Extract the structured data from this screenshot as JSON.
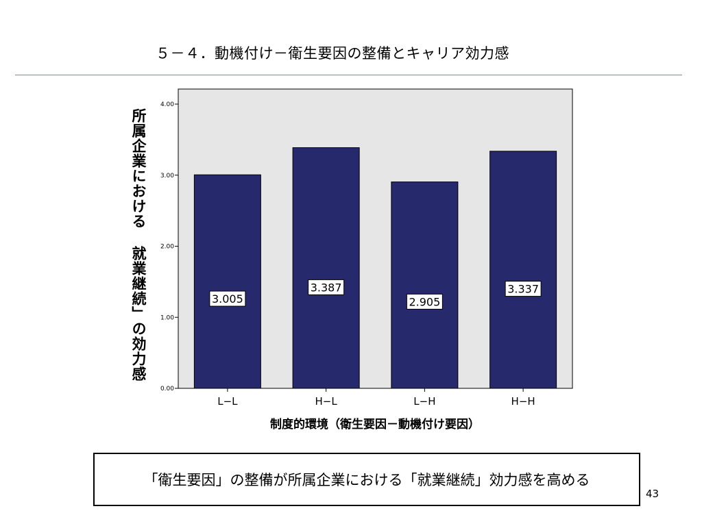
{
  "slide": {
    "title": "５－４．動機付け－衛生要因の整備とキャリア効力感",
    "conclusion": "「衛生要因」の整備が所属企業における「就業継続」効力感を高める",
    "page_number": "43"
  },
  "chart_data": {
    "type": "bar",
    "categories": [
      "L−L",
      "H−L",
      "L−H",
      "H−H"
    ],
    "values": [
      3.005,
      3.387,
      2.905,
      3.337
    ],
    "value_labels": [
      "3.005",
      "3.387",
      "2.905",
      "3.337"
    ],
    "xlabel": "制度的環境（衛生要因－動機付け要因）",
    "ylabel": "所属企業における 就業継続」の効力感",
    "ylim": [
      0,
      4
    ],
    "yticks": [
      0,
      1,
      2,
      3,
      4
    ],
    "ytick_labels": [
      "0.00",
      "1.00",
      "2.00",
      "3.00",
      "4.00"
    ],
    "grid": false,
    "legend": "none",
    "colors": {
      "bar": "#262a6d",
      "plot_background": "#e6e6e6",
      "label_box": "#ffffff"
    }
  }
}
